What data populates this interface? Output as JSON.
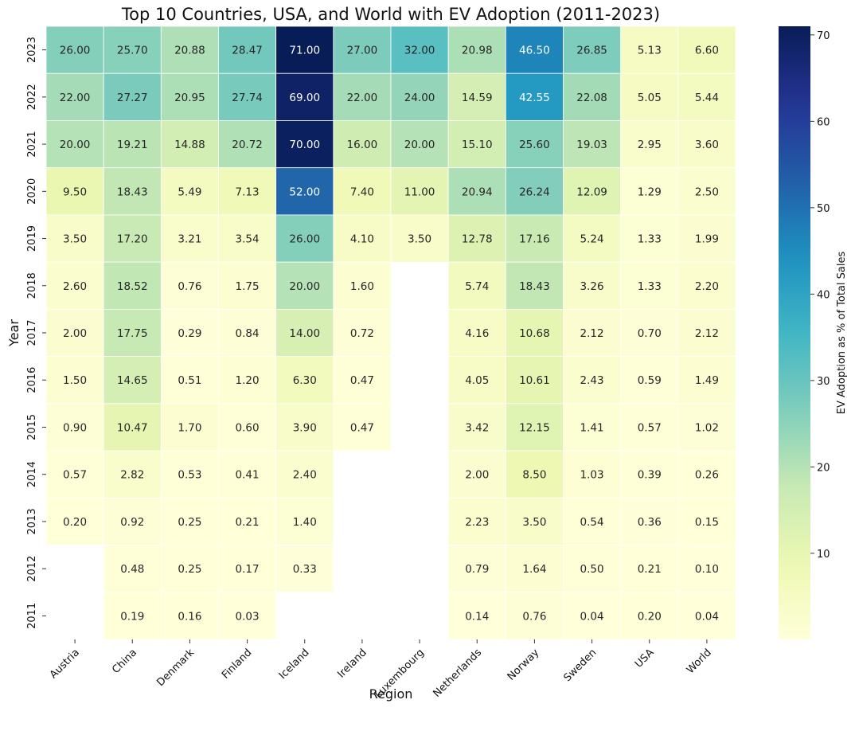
{
  "chart_data": {
    "type": "heatmap",
    "title": "Top 10 Countries, USA, and World with EV Adoption (2011-2023)",
    "xlabel": "Region",
    "ylabel": "Year",
    "colorbar_label": "EV Adoption as % of Total Sales",
    "colorscale": "YlGnBu",
    "color_range": [
      0.03,
      71.0
    ],
    "colorbar_ticks": [
      10,
      20,
      30,
      40,
      50,
      60,
      70
    ],
    "x_categories": [
      "Austria",
      "China",
      "Denmark",
      "Finland",
      "Iceland",
      "Ireland",
      "Luxembourg",
      "Netherlands",
      "Norway",
      "Sweden",
      "USA",
      "World"
    ],
    "y_categories": [
      "2023",
      "2022",
      "2021",
      "2020",
      "2019",
      "2018",
      "2017",
      "2016",
      "2015",
      "2014",
      "2013",
      "2012",
      "2011"
    ],
    "values": [
      [
        26.0,
        25.7,
        20.88,
        28.47,
        71.0,
        27.0,
        32.0,
        20.98,
        46.5,
        26.85,
        5.13,
        6.6
      ],
      [
        22.0,
        27.27,
        20.95,
        27.74,
        69.0,
        22.0,
        24.0,
        14.59,
        42.55,
        22.08,
        5.05,
        5.44
      ],
      [
        20.0,
        19.21,
        14.88,
        20.72,
        70.0,
        16.0,
        20.0,
        15.1,
        25.6,
        19.03,
        2.95,
        3.6
      ],
      [
        9.5,
        18.43,
        5.49,
        7.13,
        52.0,
        7.4,
        11.0,
        20.94,
        26.24,
        12.09,
        1.29,
        2.5
      ],
      [
        3.5,
        17.2,
        3.21,
        3.54,
        26.0,
        4.1,
        3.5,
        12.78,
        17.16,
        5.24,
        1.33,
        1.99
      ],
      [
        2.6,
        18.52,
        0.76,
        1.75,
        20.0,
        1.6,
        null,
        5.74,
        18.43,
        3.26,
        1.33,
        2.2
      ],
      [
        2.0,
        17.75,
        0.29,
        0.84,
        14.0,
        0.72,
        null,
        4.16,
        10.68,
        2.12,
        0.7,
        2.12
      ],
      [
        1.5,
        14.65,
        0.51,
        1.2,
        6.3,
        0.47,
        null,
        4.05,
        10.61,
        2.43,
        0.59,
        1.49
      ],
      [
        0.9,
        10.47,
        1.7,
        0.6,
        3.9,
        0.47,
        null,
        3.42,
        12.15,
        1.41,
        0.57,
        1.02
      ],
      [
        0.57,
        2.82,
        0.53,
        0.41,
        2.4,
        null,
        null,
        2.0,
        8.5,
        1.03,
        0.39,
        0.26
      ],
      [
        0.2,
        0.92,
        0.25,
        0.21,
        1.4,
        null,
        null,
        2.23,
        3.5,
        0.54,
        0.36,
        0.15
      ],
      [
        null,
        0.48,
        0.25,
        0.17,
        0.33,
        null,
        null,
        0.79,
        1.64,
        0.5,
        0.21,
        0.1
      ],
      [
        null,
        0.19,
        0.16,
        0.03,
        null,
        null,
        null,
        0.14,
        0.76,
        0.04,
        0.2,
        0.04
      ]
    ],
    "grid": false,
    "annotations": "values shown in each cell with two decimals"
  }
}
